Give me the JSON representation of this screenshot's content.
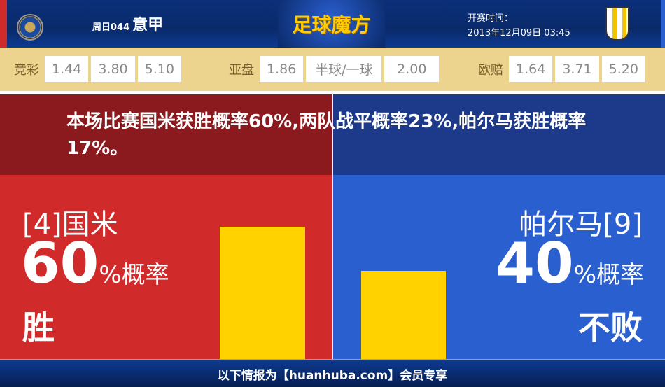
{
  "header": {
    "match_no": "周日044",
    "league": "意甲",
    "brand": "足球魔方",
    "kickoff_label": "开赛时间：",
    "kickoff_time": "2013年12月09日 03:45",
    "home_logo": "inter-crest",
    "away_logo": "parma-crest"
  },
  "odds": {
    "jingcai": {
      "label": "竞彩",
      "values": [
        "1.44",
        "3.80",
        "5.10"
      ]
    },
    "yapan": {
      "label": "亚盘",
      "values": [
        "1.86",
        "半球/一球",
        "2.00"
      ]
    },
    "oupei": {
      "label": "欧赔",
      "values": [
        "1.64",
        "3.71",
        "5.20"
      ]
    }
  },
  "summary": "本场比赛国米获胜概率60%,两队战平概率23%,帕尔马获胜概率17%。",
  "home": {
    "name": "[4]国米",
    "percent": "60",
    "percent_suffix": "%概率",
    "result": "胜",
    "bar_value": 60
  },
  "away": {
    "name": "帕尔马[9]",
    "percent": "40",
    "percent_suffix": "%概率",
    "result": "不败",
    "bar_value": 40
  },
  "footer": "以下情报为【huanhuba.com】会员专享",
  "colors": {
    "home": "#d02a2a",
    "away": "#2a5fd0",
    "bar": "#ffd200"
  }
}
